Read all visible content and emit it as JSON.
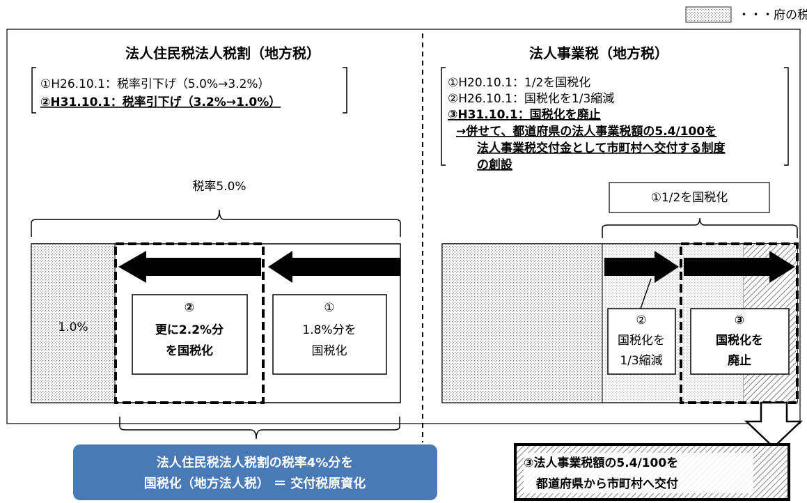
{
  "legend": "・・・府の税収",
  "left": {
    "title": "法人住民税法人税割（地方税）",
    "notes": [
      "①H26.10.1：税率引下げ（5.0%→3.2%）",
      "②H31.10.1：税率引下げ（3.2%→1.0%）"
    ],
    "brace_label": "税率5.0%",
    "segment_label": "1.0%",
    "box2": [
      "②",
      "更に2.2%分",
      "を国税化"
    ],
    "box1": [
      "①",
      "1.8%分を",
      "国税化"
    ],
    "result": [
      "法人住民税法人税割の税率4%分を",
      "国税化（地方法人税） ＝ 交付税原資化"
    ]
  },
  "right": {
    "title": "法人事業税（地方税）",
    "notes": [
      "①H20.10.1：1/2を国税化",
      "②H26.10.1：国税化を1/3縮減",
      "③H31.10.1：国税化を廃止",
      "→併せて、都道府県の法人事業税額の5.4/100を",
      "法人事業税交付金として市町村へ交付する制度",
      "の創設"
    ],
    "brace_label": "①1/2を国税化",
    "box2": [
      "②",
      "国税化を",
      "1/3縮減"
    ],
    "box3": [
      "③",
      "国税化を",
      "廃止"
    ],
    "result": [
      "③法人事業税額の5.4/100を",
      "都道府県から市町村へ交付"
    ]
  }
}
